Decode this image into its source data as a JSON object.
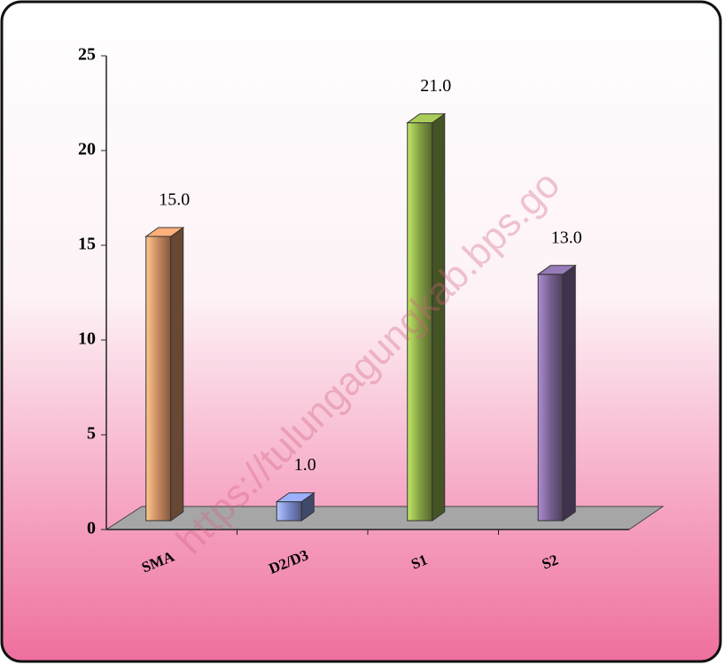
{
  "chart_data": {
    "type": "bar3d",
    "watermark": "https://tulungagungkab.bps.go",
    "categories": [
      "SMA",
      "D2/D3",
      "S1",
      "S2"
    ],
    "values": [
      15,
      1,
      21,
      13
    ],
    "value_labels": [
      "15.0",
      "1.0",
      "21.0",
      "13.0"
    ],
    "colors": [
      "#e8a070",
      "#8fa0ee",
      "#9aba50",
      "#8a70a8"
    ],
    "ylim": [
      0,
      25
    ],
    "yticks": [
      0,
      5,
      10,
      15,
      20,
      25
    ]
  }
}
